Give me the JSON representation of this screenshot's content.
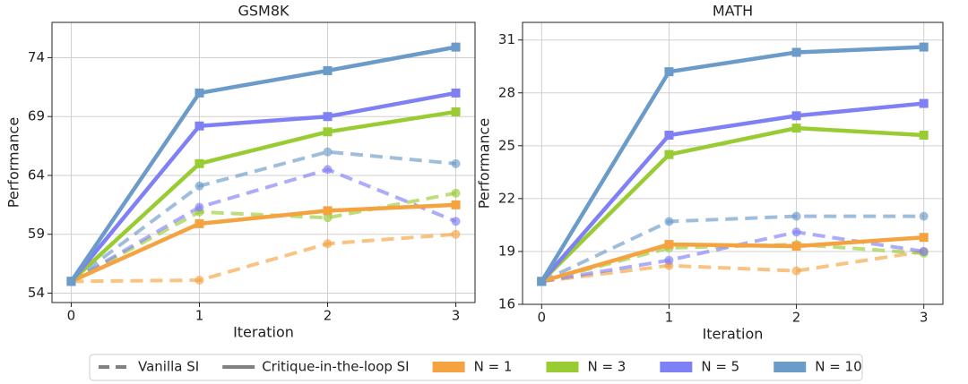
{
  "chart_data": [
    {
      "type": "line",
      "title": "GSM8K",
      "x_label": "Iteration",
      "y_label": "Performance",
      "x": [
        0,
        1,
        2,
        3
      ],
      "xlim": [
        -0.15,
        3.15
      ],
      "xticks": [
        0,
        1,
        2,
        3
      ],
      "ylim": [
        53.2,
        77
      ],
      "yticks": [
        54,
        59,
        64,
        69,
        74
      ],
      "grid": true,
      "series": [
        {
          "name": "N = 1",
          "dashed": true,
          "color": "#f4a340",
          "values": [
            55,
            55.1,
            58.2,
            59.0
          ]
        },
        {
          "name": "N = 3",
          "dashed": true,
          "color": "#99cc33",
          "values": [
            55,
            60.9,
            60.4,
            62.5
          ]
        },
        {
          "name": "N = 5",
          "dashed": true,
          "color": "#8080f5",
          "values": [
            55,
            61.3,
            64.5,
            60.1
          ]
        },
        {
          "name": "N = 10",
          "dashed": true,
          "color": "#6b9bc9",
          "values": [
            55,
            63.1,
            66.0,
            65.0
          ]
        },
        {
          "name": "N = 1",
          "dashed": false,
          "color": "#f4a340",
          "values": [
            55,
            59.9,
            61.0,
            61.5
          ]
        },
        {
          "name": "N = 3",
          "dashed": false,
          "color": "#99cc33",
          "values": [
            55,
            65.0,
            67.7,
            69.4
          ]
        },
        {
          "name": "N = 5",
          "dashed": false,
          "color": "#8080f5",
          "values": [
            55,
            68.2,
            69.0,
            71.0
          ]
        },
        {
          "name": "N = 10",
          "dashed": false,
          "color": "#6b9bc9",
          "values": [
            55,
            71.0,
            72.9,
            74.9
          ]
        }
      ]
    },
    {
      "type": "line",
      "title": "MATH",
      "x_label": "Iteration",
      "y_label": "Performance",
      "x": [
        0,
        1,
        2,
        3
      ],
      "xlim": [
        -0.15,
        3.15
      ],
      "xticks": [
        0,
        1,
        2,
        3
      ],
      "ylim": [
        16,
        32
      ],
      "yticks": [
        16,
        19,
        22,
        25,
        28,
        31
      ],
      "grid": true,
      "series": [
        {
          "name": "N = 1",
          "dashed": true,
          "color": "#f4a340",
          "values": [
            17.3,
            18.2,
            17.9,
            19.0
          ]
        },
        {
          "name": "N = 3",
          "dashed": true,
          "color": "#99cc33",
          "values": [
            17.3,
            19.2,
            19.4,
            18.9
          ]
        },
        {
          "name": "N = 5",
          "dashed": true,
          "color": "#8080f5",
          "values": [
            17.3,
            18.5,
            20.1,
            19.0
          ]
        },
        {
          "name": "N = 10",
          "dashed": true,
          "color": "#6b9bc9",
          "values": [
            17.3,
            20.7,
            21.0,
            21.0
          ]
        },
        {
          "name": "N = 1",
          "dashed": false,
          "color": "#f4a340",
          "values": [
            17.3,
            19.4,
            19.3,
            19.8
          ]
        },
        {
          "name": "N = 3",
          "dashed": false,
          "color": "#99cc33",
          "values": [
            17.3,
            24.5,
            26.0,
            25.6
          ]
        },
        {
          "name": "N = 5",
          "dashed": false,
          "color": "#8080f5",
          "values": [
            17.3,
            25.6,
            26.7,
            27.4
          ]
        },
        {
          "name": "N = 10",
          "dashed": false,
          "color": "#6b9bc9",
          "values": [
            17.3,
            29.2,
            30.3,
            30.6
          ]
        }
      ]
    }
  ],
  "legend": {
    "styles": [
      {
        "label": "Vanilla SI",
        "dashed": true,
        "color": "#808080"
      },
      {
        "label": "Critique-in-the-loop SI",
        "dashed": false,
        "color": "#808080"
      }
    ],
    "groups": [
      {
        "label": "N = 1",
        "color": "#f4a340"
      },
      {
        "label": "N = 3",
        "color": "#99cc33"
      },
      {
        "label": "N = 5",
        "color": "#8080f5"
      },
      {
        "label": "N = 10",
        "color": "#6b9bc9"
      }
    ]
  }
}
